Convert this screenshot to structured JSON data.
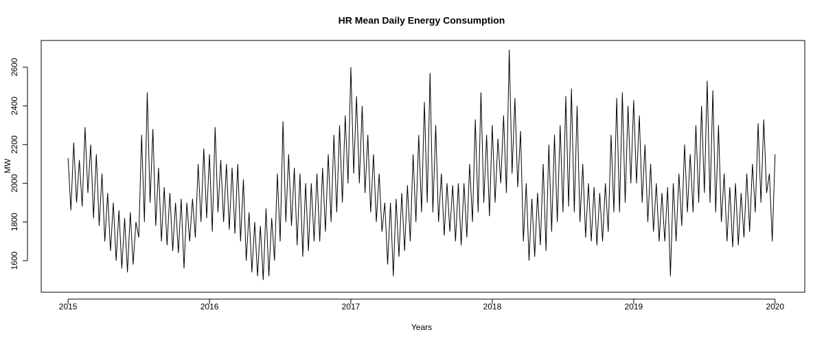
{
  "chart_data": {
    "type": "line",
    "title": "HR Mean Daily Energy Consumption",
    "x_label": "Years",
    "y_label": "MW",
    "x": [
      2015,
      2015.02,
      2015.04,
      2015.06,
      2015.08,
      2015.1,
      2015.12,
      2015.14,
      2015.16,
      2015.18,
      2015.2,
      2015.22,
      2015.24,
      2015.26,
      2015.28,
      2015.3,
      2015.32,
      2015.34,
      2015.36,
      2015.38,
      2015.4,
      2015.42,
      2015.44,
      2015.46,
      2015.48,
      2015.5,
      2015.52,
      2015.54,
      2015.56,
      2015.58,
      2015.6,
      2015.62,
      2015.64,
      2015.66,
      2015.68,
      2015.7,
      2015.72,
      2015.74,
      2015.76,
      2015.78,
      2015.8,
      2015.82,
      2015.84,
      2015.86,
      2015.88,
      2015.9,
      2015.92,
      2015.94,
      2015.96,
      2015.98,
      2016,
      2016.02,
      2016.04,
      2016.06,
      2016.08,
      2016.1,
      2016.12,
      2016.14,
      2016.16,
      2016.18,
      2016.2,
      2016.22,
      2016.24,
      2016.26,
      2016.28,
      2016.3,
      2016.32,
      2016.34,
      2016.36,
      2016.38,
      2016.4,
      2016.42,
      2016.44,
      2016.46,
      2016.48,
      2016.5,
      2016.52,
      2016.54,
      2016.56,
      2016.58,
      2016.6,
      2016.62,
      2016.64,
      2016.66,
      2016.68,
      2016.7,
      2016.72,
      2016.74,
      2016.76,
      2016.78,
      2016.8,
      2016.82,
      2016.84,
      2016.86,
      2016.88,
      2016.9,
      2016.92,
      2016.94,
      2016.96,
      2016.98,
      2017,
      2017.02,
      2017.04,
      2017.06,
      2017.08,
      2017.1,
      2017.12,
      2017.14,
      2017.16,
      2017.18,
      2017.2,
      2017.22,
      2017.24,
      2017.26,
      2017.28,
      2017.3,
      2017.32,
      2017.34,
      2017.36,
      2017.38,
      2017.4,
      2017.42,
      2017.44,
      2017.46,
      2017.48,
      2017.5,
      2017.52,
      2017.54,
      2017.56,
      2017.58,
      2017.6,
      2017.62,
      2017.64,
      2017.66,
      2017.68,
      2017.7,
      2017.72,
      2017.74,
      2017.76,
      2017.78,
      2017.8,
      2017.82,
      2017.84,
      2017.86,
      2017.88,
      2017.9,
      2017.92,
      2017.94,
      2017.96,
      2017.98,
      2018,
      2018.02,
      2018.04,
      2018.06,
      2018.08,
      2018.1,
      2018.12,
      2018.14,
      2018.16,
      2018.18,
      2018.2,
      2018.22,
      2018.24,
      2018.26,
      2018.28,
      2018.3,
      2018.32,
      2018.34,
      2018.36,
      2018.38,
      2018.4,
      2018.42,
      2018.44,
      2018.46,
      2018.48,
      2018.5,
      2018.52,
      2018.54,
      2018.56,
      2018.58,
      2018.6,
      2018.62,
      2018.64,
      2018.66,
      2018.68,
      2018.7,
      2018.72,
      2018.74,
      2018.76,
      2018.78,
      2018.8,
      2018.82,
      2018.84,
      2018.86,
      2018.88,
      2018.9,
      2018.92,
      2018.94,
      2018.96,
      2018.98,
      2019,
      2019.02,
      2019.04,
      2019.06,
      2019.08,
      2019.1,
      2019.12,
      2019.14,
      2019.16,
      2019.18,
      2019.2,
      2019.22,
      2019.24,
      2019.26,
      2019.28,
      2019.3,
      2019.32,
      2019.34,
      2019.36,
      2019.38,
      2019.4,
      2019.42,
      2019.44,
      2019.46,
      2019.48,
      2019.5,
      2019.52,
      2019.54,
      2019.56,
      2019.58,
      2019.6,
      2019.62,
      2019.64,
      2019.66,
      2019.68,
      2019.7,
      2019.72,
      2019.74,
      2019.76,
      2019.78,
      2019.8,
      2019.82,
      2019.84,
      2019.86,
      2019.88,
      2019.9,
      2019.92,
      2019.94,
      2019.96,
      2019.98,
      2020
    ],
    "series": [
      {
        "name": "HR",
        "color": "#000000",
        "values": [
          2130,
          1860,
          2210,
          1900,
          2120,
          1880,
          2290,
          1950,
          2200,
          1820,
          2150,
          1780,
          2050,
          1700,
          1950,
          1650,
          1900,
          1600,
          1860,
          1560,
          1820,
          1540,
          1850,
          1580,
          1800,
          1720,
          2250,
          1800,
          2470,
          1900,
          2280,
          1780,
          2080,
          1700,
          1980,
          1680,
          1950,
          1650,
          1900,
          1640,
          1920,
          1560,
          1900,
          1700,
          1920,
          1720,
          2100,
          1800,
          2180,
          1820,
          2150,
          1750,
          2290,
          1850,
          2120,
          1800,
          2100,
          1760,
          2080,
          1740,
          2100,
          1700,
          2020,
          1600,
          1850,
          1540,
          1800,
          1520,
          1780,
          1500,
          1870,
          1520,
          1820,
          1600,
          2050,
          1700,
          2320,
          1800,
          2150,
          1780,
          2080,
          1680,
          2050,
          1620,
          2000,
          1650,
          2000,
          1700,
          2050,
          1700,
          2080,
          1750,
          2150,
          1800,
          2250,
          1850,
          2300,
          1900,
          2350,
          2000,
          2600,
          2050,
          2450,
          2000,
          2400,
          1950,
          2250,
          1850,
          2150,
          1800,
          2050,
          1750,
          1900,
          1580,
          1900,
          1520,
          1920,
          1620,
          1950,
          1650,
          1990,
          1700,
          2150,
          1800,
          2250,
          1850,
          2420,
          1900,
          2570,
          1850,
          2300,
          1800,
          2050,
          1730,
          2000,
          1750,
          1990,
          1700,
          2000,
          1680,
          2000,
          1720,
          2100,
          1800,
          2330,
          1850,
          2470,
          1900,
          2250,
          1830,
          2300,
          1900,
          2230,
          2000,
          2350,
          1950,
          2690,
          2050,
          2440,
          1980,
          2270,
          1700,
          2000,
          1600,
          1920,
          1620,
          1950,
          1680,
          2100,
          1650,
          2200,
          1750,
          2250,
          1800,
          2300,
          1850,
          2450,
          1880,
          2490,
          1850,
          2400,
          1800,
          2100,
          1720,
          2000,
          1700,
          1980,
          1680,
          1950,
          1700,
          2000,
          1750,
          2250,
          1850,
          2440,
          1850,
          2470,
          1900,
          2400,
          2000,
          2430,
          2000,
          2350,
          1900,
          2200,
          1800,
          2100,
          1750,
          2000,
          1700,
          1950,
          1700,
          1980,
          1520,
          2000,
          1700,
          2050,
          1780,
          2200,
          1850,
          2150,
          1850,
          2300,
          1900,
          2400,
          1950,
          2530,
          1900,
          2480,
          1850,
          2300,
          1800,
          2050,
          1700,
          1980,
          1670,
          2000,
          1680,
          1950,
          1720,
          2050,
          1750,
          2100,
          1850,
          2310,
          1900,
          2330,
          1950,
          2050,
          1700,
          2150
        ]
      }
    ],
    "xlim": [
      2014.81,
      2020.21
    ],
    "xticks": [
      2015,
      2016,
      2017,
      2018,
      2019,
      2020
    ],
    "ylim": [
      1437,
      2738
    ],
    "yticks": [
      1600,
      1800,
      2000,
      2200,
      2400,
      2600
    ]
  }
}
